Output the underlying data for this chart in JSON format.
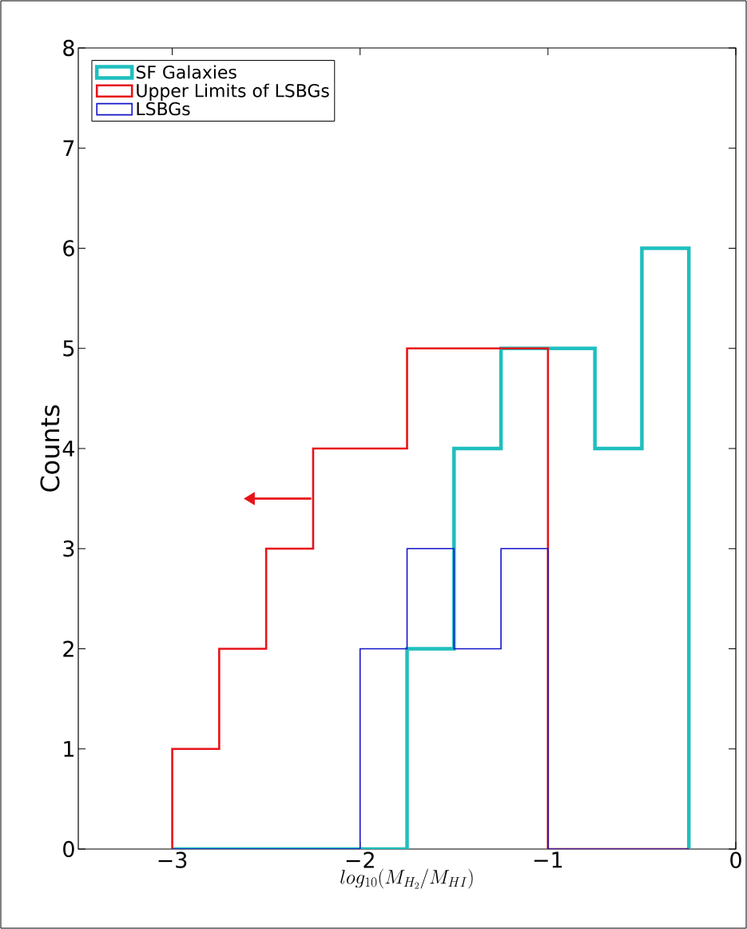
{
  "chart_data": {
    "type": "histogram",
    "xlabel": "log_{10}(M_{H_2}/M_{HI})",
    "ylabel": "Counts",
    "bins": [
      -3,
      -2.75,
      -2.5,
      -2.25,
      -2,
      -1.75,
      -1.5,
      -1.25,
      -1,
      -0.75,
      -0.5,
      -0.25
    ],
    "series": [
      {
        "name": "SF Galaxies",
        "color": "#1fbfbf",
        "values": [
          0,
          0,
          0,
          0,
          0,
          2,
          4,
          5,
          5,
          4,
          6
        ]
      },
      {
        "name": "Upper Limits of LSBGs",
        "color": "#e8131a",
        "values": [
          1,
          2,
          3,
          4,
          4,
          5,
          5,
          5,
          0,
          0,
          0
        ]
      },
      {
        "name": "LSBGs",
        "color": "#1414c8",
        "values": [
          0,
          0,
          0,
          0,
          2,
          3,
          2,
          3,
          0,
          0,
          0
        ]
      }
    ],
    "xlim": [
      -3.5,
      0
    ],
    "ylim": [
      0,
      8
    ],
    "xticks": [
      {
        "value": -3,
        "label": "−3"
      },
      {
        "value": -2,
        "label": "−2"
      },
      {
        "value": -1,
        "label": "−1"
      },
      0
    ],
    "yticks": [
      0,
      1,
      2,
      3,
      4,
      5,
      6,
      7,
      8
    ],
    "legend": "top left",
    "grid": false
  }
}
